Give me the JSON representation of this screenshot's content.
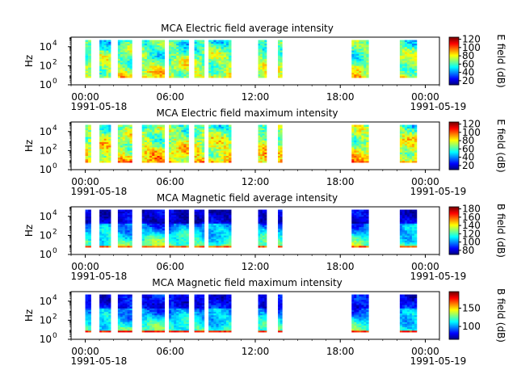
{
  "chart_data": [
    {
      "type": "heatmap",
      "title": "MCA  Electric field average intensity",
      "ylabel": "Hz",
      "yscale": "log",
      "ylim": [
        1,
        100000
      ],
      "yticks": [
        {
          "exp": "0"
        },
        {
          "exp": "2"
        },
        {
          "exp": "4"
        }
      ],
      "x_ticks": [
        "00:00",
        "06:00",
        "12:00",
        "18:00",
        "00:00"
      ],
      "x_start_label": "1991-05-18",
      "x_end_label": "1991-05-19",
      "xlim_hours": [
        -1,
        25
      ],
      "colorbar": {
        "label": "E field (dB)",
        "range": [
          10,
          125
        ],
        "ticks": [
          "20",
          "40",
          "60",
          "80",
          "100",
          "120"
        ]
      },
      "segments_hours": [
        [
          0.0,
          0.4
        ],
        [
          1.0,
          1.8
        ],
        [
          2.3,
          3.3
        ],
        [
          4.0,
          5.6
        ],
        [
          5.9,
          7.3
        ],
        [
          7.7,
          8.4
        ],
        [
          8.7,
          10.3
        ],
        [
          12.2,
          12.8
        ],
        [
          13.6,
          13.9
        ],
        [
          18.8,
          20.0
        ],
        [
          22.2,
          23.4
        ]
      ],
      "pattern": "electric-avg"
    },
    {
      "type": "heatmap",
      "title": "MCA  Electric field maximum intensity",
      "ylabel": "Hz",
      "yscale": "log",
      "ylim": [
        1,
        100000
      ],
      "yticks": [
        {
          "exp": "0"
        },
        {
          "exp": "2"
        },
        {
          "exp": "4"
        }
      ],
      "x_ticks": [
        "00:00",
        "06:00",
        "12:00",
        "18:00",
        "00:00"
      ],
      "x_start_label": "1991-05-18",
      "x_end_label": "1991-05-19",
      "xlim_hours": [
        -1,
        25
      ],
      "colorbar": {
        "label": "E field (dB)",
        "range": [
          10,
          125
        ],
        "ticks": [
          "20",
          "40",
          "60",
          "80",
          "100",
          "120"
        ]
      },
      "segments_hours": [
        [
          0.0,
          0.4
        ],
        [
          1.0,
          1.8
        ],
        [
          2.3,
          3.3
        ],
        [
          4.0,
          5.6
        ],
        [
          5.9,
          7.3
        ],
        [
          7.7,
          8.4
        ],
        [
          8.7,
          10.3
        ],
        [
          12.2,
          12.8
        ],
        [
          13.6,
          13.9
        ],
        [
          18.8,
          20.0
        ],
        [
          22.2,
          23.4
        ]
      ],
      "pattern": "electric-max"
    },
    {
      "type": "heatmap",
      "title": "MCA  Magnetic field average intensity",
      "ylabel": "Hz",
      "yscale": "log",
      "ylim": [
        1,
        100000
      ],
      "yticks": [
        {
          "exp": "0"
        },
        {
          "exp": "2"
        },
        {
          "exp": "4"
        }
      ],
      "x_ticks": [
        "00:00",
        "06:00",
        "12:00",
        "18:00",
        "00:00"
      ],
      "x_start_label": "1991-05-18",
      "x_end_label": "1991-05-19",
      "xlim_hours": [
        -1,
        25
      ],
      "colorbar": {
        "label": "B field (dB)",
        "range": [
          70,
          185
        ],
        "ticks": [
          "80",
          "100",
          "120",
          "140",
          "160",
          "180"
        ]
      },
      "segments_hours": [
        [
          0.0,
          0.4
        ],
        [
          1.0,
          1.8
        ],
        [
          2.3,
          3.3
        ],
        [
          4.0,
          5.6
        ],
        [
          5.9,
          7.3
        ],
        [
          7.7,
          8.4
        ],
        [
          8.7,
          10.3
        ],
        [
          12.2,
          12.8
        ],
        [
          13.6,
          13.9
        ],
        [
          18.8,
          20.0
        ],
        [
          22.2,
          23.4
        ]
      ],
      "pattern": "magnetic-avg"
    },
    {
      "type": "heatmap",
      "title": "MCA  Magnetic field maximum intensity",
      "ylabel": "Hz",
      "yscale": "log",
      "ylim": [
        1,
        100000
      ],
      "yticks": [
        {
          "exp": "0"
        },
        {
          "exp": "2"
        },
        {
          "exp": "4"
        }
      ],
      "x_ticks": [
        "00:00",
        "06:00",
        "12:00",
        "18:00",
        "00:00"
      ],
      "x_start_label": "1991-05-18",
      "x_end_label": "1991-05-19",
      "xlim_hours": [
        -1,
        25
      ],
      "colorbar": {
        "label": "B field (dB)",
        "range": [
          65,
          195
        ],
        "ticks": [
          "100",
          "150"
        ]
      },
      "segments_hours": [
        [
          0.0,
          0.4
        ],
        [
          1.0,
          1.8
        ],
        [
          2.3,
          3.3
        ],
        [
          4.0,
          5.6
        ],
        [
          5.9,
          7.3
        ],
        [
          7.7,
          8.4
        ],
        [
          8.7,
          10.3
        ],
        [
          12.2,
          12.8
        ],
        [
          13.6,
          13.9
        ],
        [
          18.8,
          20.0
        ],
        [
          22.2,
          23.4
        ]
      ],
      "pattern": "magnetic-max"
    }
  ]
}
